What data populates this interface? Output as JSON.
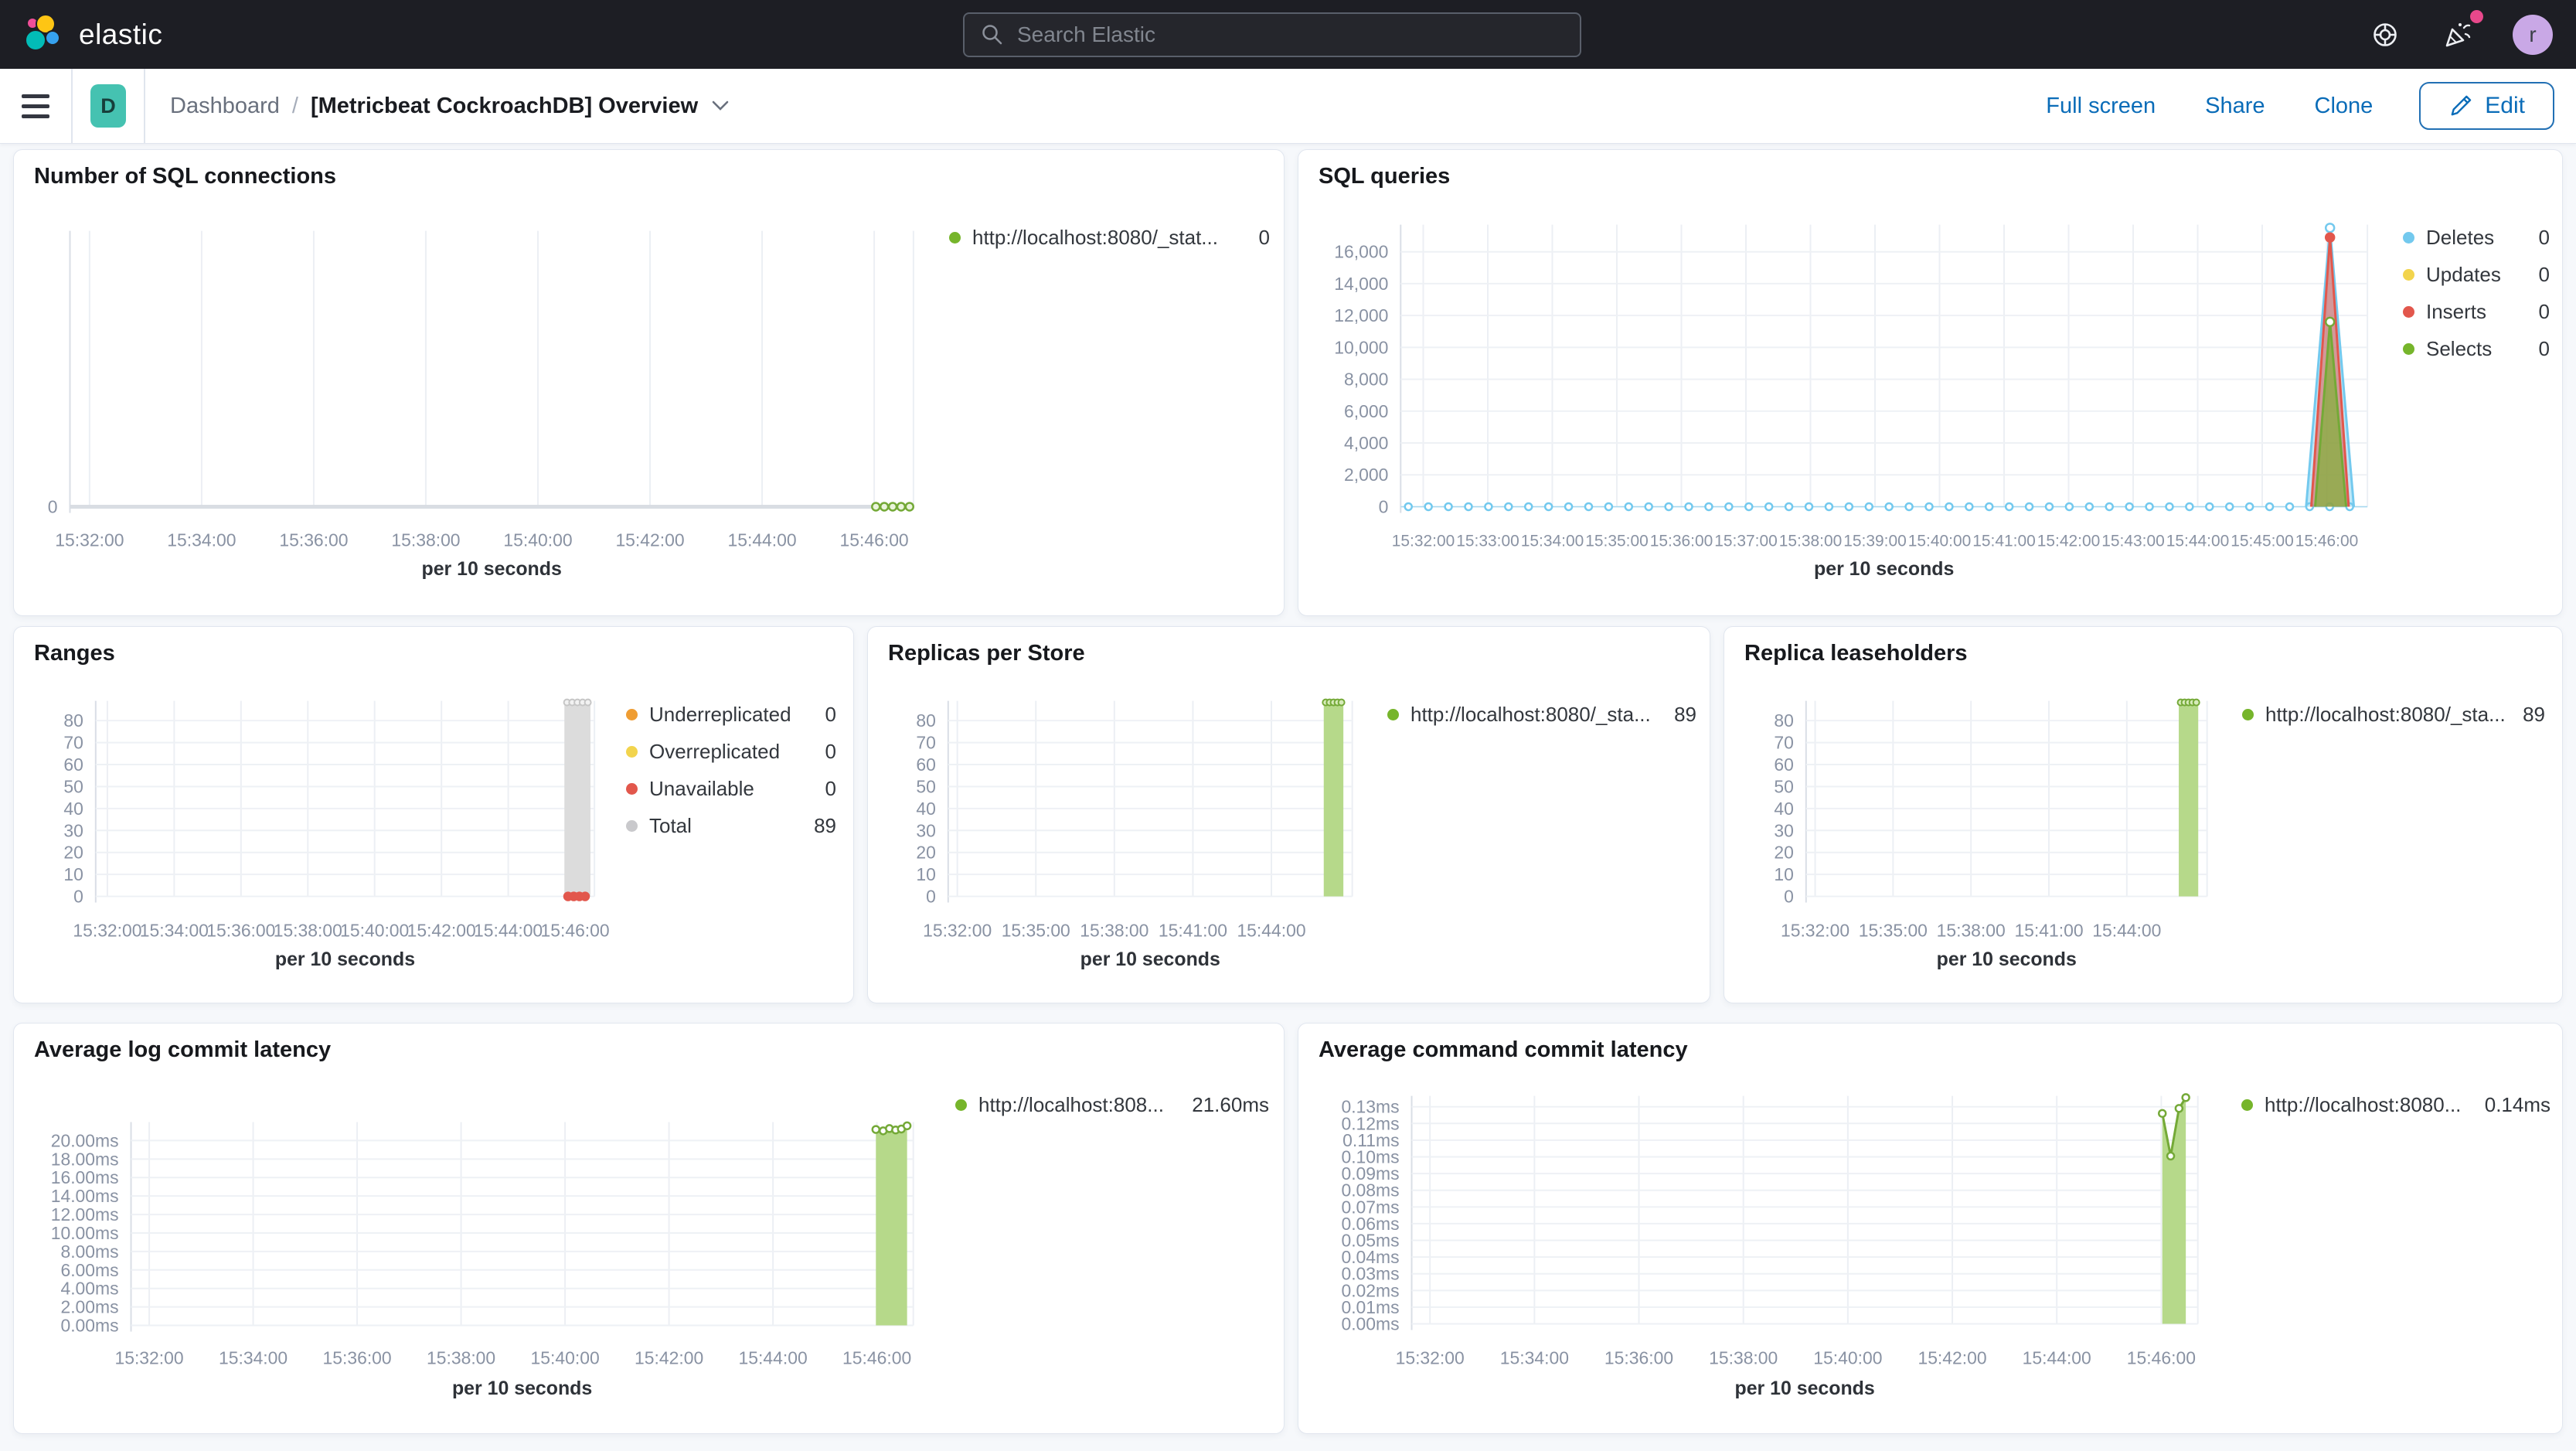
{
  "topbar": {
    "brand": "elastic",
    "search_placeholder": "Search Elastic",
    "avatar_initial": "r"
  },
  "toolbar": {
    "space_badge": "D",
    "breadcrumb_root": "Dashboard",
    "breadcrumb_separator": "/",
    "title": "[Metricbeat CockroachDB] Overview",
    "full_screen": "Full screen",
    "share": "Share",
    "clone": "Clone",
    "edit": "Edit"
  },
  "colors": {
    "topbar_bg": "#1D1E24",
    "accent_blue": "#0A6CB8",
    "badge_teal": "#45C2B1",
    "notification_pink": "#F04E98",
    "series_green": "#76B52B",
    "series_green_fill": "#B6D98A",
    "series_blue": "#73C9EE",
    "series_yellow": "#F2D44D",
    "series_red": "#E2574C",
    "series_orange": "#EF9D33",
    "series_gray": "#C9C9CC"
  },
  "chart_data": [
    {
      "id": "sql_connections",
      "type": "line",
      "title": "Number of SQL connections",
      "xlabel": "per 10 seconds",
      "x_ticks": [
        "15:32:00",
        "15:34:00",
        "15:36:00",
        "15:38:00",
        "15:40:00",
        "15:42:00",
        "15:44:00",
        "15:46:00"
      ],
      "tick_minutes": [
        0,
        2,
        4,
        6,
        8,
        10,
        12,
        14
      ],
      "y_ticks": [
        {
          "v": 0,
          "label": "0"
        }
      ],
      "ylim": [
        0,
        1
      ],
      "zero_axis_line": true,
      "series": [
        {
          "name": "http://localhost:8080/_stat...",
          "kind": "dots",
          "stroke": "#74A937",
          "fill": "#EAF4DB",
          "y": 0,
          "connect": true,
          "points_m": [
            14.03,
            14.18,
            14.33,
            14.48,
            14.63
          ]
        }
      ],
      "legend": [
        {
          "label": "http://localhost:8080/_stat...",
          "value": "0",
          "color": "#76B52B"
        }
      ]
    },
    {
      "id": "sql_queries",
      "type": "area",
      "title": "SQL queries",
      "xlabel": "per 10 seconds",
      "x_ticks": [
        "15:32:00",
        "15:33:00",
        "15:34:00",
        "15:35:00",
        "15:36:00",
        "15:37:00",
        "15:38:00",
        "15:39:00",
        "15:40:00",
        "15:41:00",
        "15:42:00",
        "15:43:00",
        "15:44:00",
        "15:45:00",
        "15:46:00"
      ],
      "tick_minutes": [
        0,
        1,
        2,
        3,
        4,
        5,
        6,
        7,
        8,
        9,
        10,
        11,
        12,
        13,
        14
      ],
      "y_ticks": [
        {
          "v": 0,
          "label": "0"
        },
        {
          "v": 2000,
          "label": "2,000"
        },
        {
          "v": 4000,
          "label": "4,000"
        },
        {
          "v": 6000,
          "label": "6,000"
        },
        {
          "v": 8000,
          "label": "8,000"
        },
        {
          "v": 10000,
          "label": "10,000"
        },
        {
          "v": 12000,
          "label": "12,000"
        },
        {
          "v": 14000,
          "label": "14,000"
        },
        {
          "v": 16000,
          "label": "16,000"
        }
      ],
      "ylim": [
        0,
        17700
      ],
      "series": [
        {
          "name": "Deletes",
          "kind": "zero-line",
          "stroke": "#73C9EE",
          "y": 0
        },
        {
          "name": "Deletes",
          "kind": "spike",
          "fill": "rgba(115,201,238,0.45)",
          "stroke": "#73C9EE",
          "points": [
            [
              13.68,
              0
            ],
            [
              14.05,
              17500
            ],
            [
              14.42,
              0
            ]
          ],
          "markers": [
            [
              14.05,
              17500
            ]
          ],
          "marker_fill": "#FFFFFF"
        },
        {
          "name": "Inserts",
          "kind": "spike",
          "fill": "rgba(226,87,76,0.55)",
          "stroke": "#E2574C",
          "points": [
            [
              13.76,
              0
            ],
            [
              14.05,
              16900
            ],
            [
              14.34,
              0
            ]
          ],
          "markers": [
            [
              14.05,
              16900
            ]
          ],
          "marker_fill": "#E2574C"
        },
        {
          "name": "Selects",
          "kind": "spike",
          "fill": "rgba(118,181,43,0.62)",
          "stroke": "#74A937",
          "points": [
            [
              13.82,
              0
            ],
            [
              14.05,
              11600
            ],
            [
              14.3,
              0
            ]
          ],
          "markers": [
            [
              14.05,
              11600
            ]
          ],
          "marker_fill": "#FFFFFF"
        }
      ],
      "legend": [
        {
          "label": "Deletes",
          "value": "0",
          "color": "#73C9EE"
        },
        {
          "label": "Updates",
          "value": "0",
          "color": "#F2D44D"
        },
        {
          "label": "Inserts",
          "value": "0",
          "color": "#E2574C"
        },
        {
          "label": "Selects",
          "value": "0",
          "color": "#76B52B"
        }
      ]
    },
    {
      "id": "ranges",
      "type": "bar",
      "title": "Ranges",
      "xlabel": "per 10 seconds",
      "x_ticks": [
        "15:32:00",
        "15:34:00",
        "15:36:00",
        "15:38:00",
        "15:40:00",
        "15:42:00",
        "15:44:00",
        "15:46:00"
      ],
      "tick_minutes": [
        0,
        2,
        4,
        6,
        8,
        10,
        12,
        14
      ],
      "y_ticks": [
        {
          "v": 0,
          "label": "0"
        },
        {
          "v": 10,
          "label": "10"
        },
        {
          "v": 20,
          "label": "20"
        },
        {
          "v": 30,
          "label": "30"
        },
        {
          "v": 40,
          "label": "40"
        },
        {
          "v": 50,
          "label": "50"
        },
        {
          "v": 60,
          "label": "60"
        },
        {
          "v": 70,
          "label": "70"
        },
        {
          "v": 80,
          "label": "80"
        }
      ],
      "ylim": [
        0,
        89
      ],
      "series": [
        {
          "name": "Total",
          "kind": "bar",
          "fill": "#DCDCDC",
          "m0": 13.68,
          "m1": 14.46,
          "value": 89,
          "top_markers": {
            "stroke": "#C6C6C6",
            "fill": "#F2F2F2",
            "count": 5
          }
        },
        {
          "name": "Unavailable",
          "kind": "dots",
          "stroke": "#E2574C",
          "fill": "#E2574C",
          "y": 0,
          "points_m": [
            13.79,
            13.96,
            14.13,
            14.3
          ]
        }
      ],
      "legend": [
        {
          "label": "Underreplicated",
          "value": "0",
          "color": "#EF9D33"
        },
        {
          "label": "Overreplicated",
          "value": "0",
          "color": "#F2D44D"
        },
        {
          "label": "Unavailable",
          "value": "0",
          "color": "#E2574C"
        },
        {
          "label": "Total",
          "value": "89",
          "color": "#C9C9CC"
        }
      ]
    },
    {
      "id": "replicas_per_store",
      "type": "bar",
      "title": "Replicas per Store",
      "xlabel": "per 10 seconds",
      "x_ticks": [
        "15:32:00",
        "15:35:00",
        "15:38:00",
        "15:41:00",
        "15:44:00"
      ],
      "tick_minutes": [
        0,
        3,
        6,
        9,
        12
      ],
      "y_ticks": [
        {
          "v": 0,
          "label": "0"
        },
        {
          "v": 10,
          "label": "10"
        },
        {
          "v": 20,
          "label": "20"
        },
        {
          "v": 30,
          "label": "30"
        },
        {
          "v": 40,
          "label": "40"
        },
        {
          "v": 50,
          "label": "50"
        },
        {
          "v": 60,
          "label": "60"
        },
        {
          "v": 70,
          "label": "70"
        },
        {
          "v": 80,
          "label": "80"
        }
      ],
      "ylim": [
        0,
        89
      ],
      "series": [
        {
          "name": "http://localhost:8080/_sta...",
          "kind": "bar",
          "fill": "#B6D98A",
          "m0": 14.0,
          "m1": 14.75,
          "value": 89,
          "top_markers": {
            "stroke": "#74A937",
            "fill": "#D7EBBA",
            "count": 5
          }
        }
      ],
      "legend": [
        {
          "label": "http://localhost:8080/_sta...",
          "value": "89",
          "color": "#76B52B"
        }
      ]
    },
    {
      "id": "replica_leaseholders",
      "type": "bar",
      "title": "Replica leaseholders",
      "xlabel": "per 10 seconds",
      "x_ticks": [
        "15:32:00",
        "15:35:00",
        "15:38:00",
        "15:41:00",
        "15:44:00"
      ],
      "tick_minutes": [
        0,
        3,
        6,
        9,
        12
      ],
      "y_ticks": [
        {
          "v": 0,
          "label": "0"
        },
        {
          "v": 10,
          "label": "10"
        },
        {
          "v": 20,
          "label": "20"
        },
        {
          "v": 30,
          "label": "30"
        },
        {
          "v": 40,
          "label": "40"
        },
        {
          "v": 50,
          "label": "50"
        },
        {
          "v": 60,
          "label": "60"
        },
        {
          "v": 70,
          "label": "70"
        },
        {
          "v": 80,
          "label": "80"
        }
      ],
      "ylim": [
        0,
        89
      ],
      "series": [
        {
          "name": "http://localhost:8080/_sta...",
          "kind": "bar",
          "fill": "#B6D98A",
          "m0": 14.0,
          "m1": 14.75,
          "value": 89,
          "top_markers": {
            "stroke": "#74A937",
            "fill": "#D7EBBA",
            "count": 5
          }
        }
      ],
      "legend": [
        {
          "label": "http://localhost:8080/_sta...",
          "value": "89",
          "color": "#76B52B"
        }
      ]
    },
    {
      "id": "avg_log_commit_latency",
      "type": "area",
      "title": "Average log commit latency",
      "xlabel": "per 10 seconds",
      "x_ticks": [
        "15:32:00",
        "15:34:00",
        "15:36:00",
        "15:38:00",
        "15:40:00",
        "15:42:00",
        "15:44:00",
        "15:46:00"
      ],
      "tick_minutes": [
        0,
        2,
        4,
        6,
        8,
        10,
        12,
        14
      ],
      "y_ticks": [
        {
          "v": 0,
          "label": "0.00ms"
        },
        {
          "v": 2,
          "label": "2.00ms"
        },
        {
          "v": 4,
          "label": "4.00ms"
        },
        {
          "v": 6,
          "label": "6.00ms"
        },
        {
          "v": 8,
          "label": "8.00ms"
        },
        {
          "v": 10,
          "label": "10.00ms"
        },
        {
          "v": 12,
          "label": "12.00ms"
        },
        {
          "v": 14,
          "label": "14.00ms"
        },
        {
          "v": 16,
          "label": "16.00ms"
        },
        {
          "v": 18,
          "label": "18.00ms"
        },
        {
          "v": 20,
          "label": "20.00ms"
        }
      ],
      "ylim": [
        0,
        22
      ],
      "series": [
        {
          "name": "http://localhost:808...",
          "kind": "area",
          "fill": "#B6D98A",
          "stroke": "#74A937",
          "point_markers": true,
          "points": [
            [
              13.98,
              21.2
            ],
            [
              14.12,
              21.05
            ],
            [
              14.24,
              21.3
            ],
            [
              14.36,
              21.15
            ],
            [
              14.47,
              21.25
            ],
            [
              14.58,
              21.6
            ]
          ]
        }
      ],
      "legend": [
        {
          "label": "http://localhost:808...",
          "value": "21.60ms",
          "color": "#76B52B"
        }
      ]
    },
    {
      "id": "avg_command_commit_latency",
      "type": "area",
      "title": "Average command commit latency",
      "xlabel": "per 10 seconds",
      "x_ticks": [
        "15:32:00",
        "15:34:00",
        "15:36:00",
        "15:38:00",
        "15:40:00",
        "15:42:00",
        "15:44:00",
        "15:46:00"
      ],
      "tick_minutes": [
        0,
        2,
        4,
        6,
        8,
        10,
        12,
        14
      ],
      "y_ticks": [
        {
          "v": 0,
          "label": "0.00ms"
        },
        {
          "v": 0.01,
          "label": "0.01ms"
        },
        {
          "v": 0.02,
          "label": "0.02ms"
        },
        {
          "v": 0.03,
          "label": "0.03ms"
        },
        {
          "v": 0.04,
          "label": "0.04ms"
        },
        {
          "v": 0.05,
          "label": "0.05ms"
        },
        {
          "v": 0.06,
          "label": "0.06ms"
        },
        {
          "v": 0.07,
          "label": "0.07ms"
        },
        {
          "v": 0.08,
          "label": "0.08ms"
        },
        {
          "v": 0.09,
          "label": "0.09ms"
        },
        {
          "v": 0.1,
          "label": "0.10ms"
        },
        {
          "v": 0.11,
          "label": "0.11ms"
        },
        {
          "v": 0.12,
          "label": "0.12ms"
        },
        {
          "v": 0.13,
          "label": "0.13ms"
        }
      ],
      "ylim": [
        0,
        0.1365
      ],
      "series": [
        {
          "name": "http://localhost:8080...",
          "kind": "area",
          "fill": "#B6D98A",
          "stroke": "#74A937",
          "point_markers": true,
          "points": [
            [
              14.02,
              0.126
            ],
            [
              14.18,
              0.1005
            ],
            [
              14.34,
              0.129
            ],
            [
              14.47,
              0.1355
            ]
          ]
        }
      ],
      "legend": [
        {
          "label": "http://localhost:8080...",
          "value": "0.14ms",
          "color": "#76B52B"
        }
      ]
    }
  ]
}
